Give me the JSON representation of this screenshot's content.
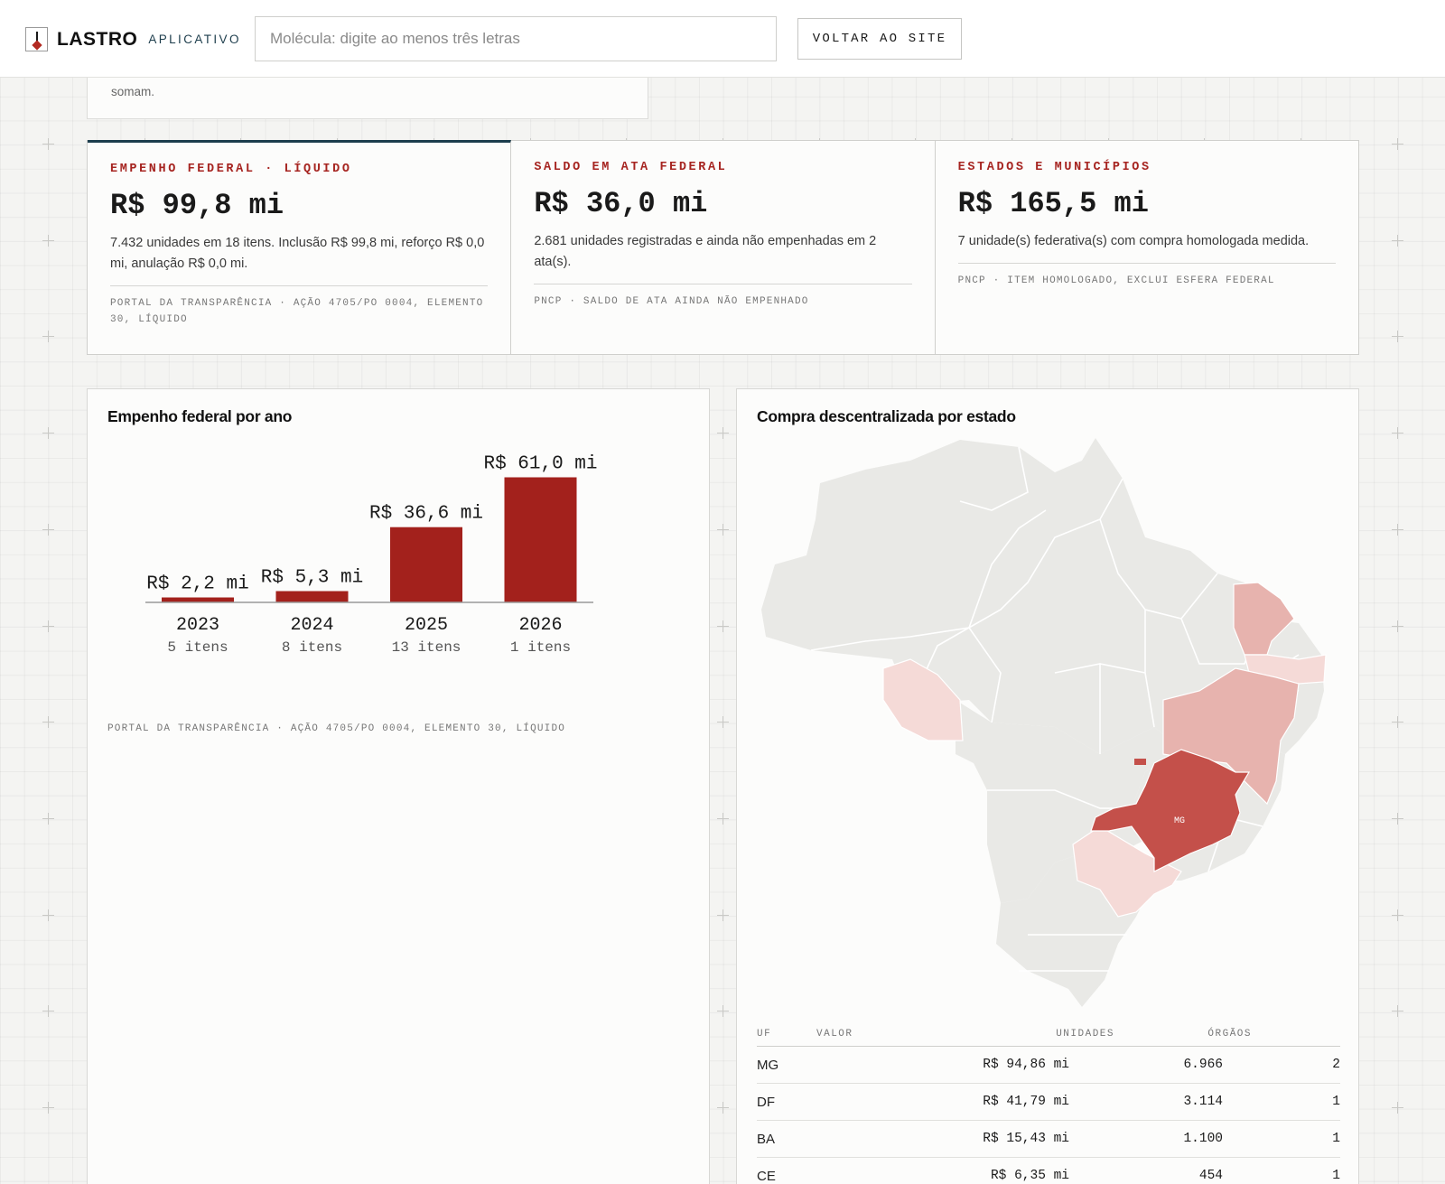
{
  "header": {
    "brand_name": "LASTRO",
    "brand_sub": "APLICATIVO",
    "search_placeholder": "Molécula: digite ao menos três letras",
    "back_button": "VOLTAR AO SITE"
  },
  "note_card": {
    "text": "somam."
  },
  "stats": [
    {
      "label": "EMPENHO FEDERAL · LÍQUIDO",
      "value": "R$ 99,8 mi",
      "description": "7.432 unidades em 18 itens. Inclusão R$ 99,8 mi, reforço R$ 0,0 mi, anulação R$ 0,0 mi.",
      "source": "PORTAL DA TRANSPARÊNCIA · AÇÃO 4705/PO 0004, ELEMENTO 30, LÍQUIDO"
    },
    {
      "label": "SALDO EM ATA FEDERAL",
      "value": "R$ 36,0 mi",
      "description": "2.681 unidades registradas e ainda não empenhadas em 2 ata(s).",
      "source": "PNCP · SALDO DE ATA AINDA NÃO EMPENHADO"
    },
    {
      "label": "ESTADOS E MUNICÍPIOS",
      "value": "R$ 165,5 mi",
      "description": "7 unidade(s) federativa(s) com compra homologada medida.",
      "source": "PNCP · ITEM HOMOLOGADO, EXCLUI ESFERA FEDERAL"
    }
  ],
  "bar_panel": {
    "title": "Empenho federal por ano",
    "source": "PORTAL DA TRANSPARÊNCIA · AÇÃO 4705/PO 0004, ELEMENTO 30, LÍQUIDO"
  },
  "chart_data": {
    "type": "bar",
    "categories": [
      "2023",
      "2024",
      "2025",
      "2026"
    ],
    "values": [
      2.2,
      5.3,
      36.6,
      61.0
    ],
    "value_labels": [
      "R$ 2,2 mi",
      "R$ 5,3 mi",
      "R$ 36,6 mi",
      "R$ 61,0 mi"
    ],
    "sublabels": [
      "5 itens",
      "8 itens",
      "13 itens",
      "1 itens"
    ],
    "title": "Empenho federal por ano",
    "xlabel": "",
    "ylabel": "",
    "ylim": [
      0,
      61.0
    ],
    "grid": false,
    "color": "#a3211c"
  },
  "map_panel": {
    "title": "Compra descentralizada por estado",
    "highlight_label": "MG",
    "colors": {
      "base": "#e9e9e6",
      "strong": "#c4504a",
      "medium": "#e7b3ae",
      "light": "#f5dad7"
    }
  },
  "uf_table": {
    "headers": [
      "UF",
      "VALOR",
      "UNIDADES",
      "ÓRGÃOS"
    ],
    "rows": [
      {
        "uf": "MG",
        "valor": "R$ 94,86 mi",
        "unidades": "6.966",
        "orgaos": "2"
      },
      {
        "uf": "DF",
        "valor": "R$ 41,79 mi",
        "unidades": "3.114",
        "orgaos": "1"
      },
      {
        "uf": "BA",
        "valor": "R$ 15,43 mi",
        "unidades": "1.100",
        "orgaos": "1"
      },
      {
        "uf": "CE",
        "valor": "R$ 6,35 mi",
        "unidades": "454",
        "orgaos": "1"
      }
    ]
  }
}
